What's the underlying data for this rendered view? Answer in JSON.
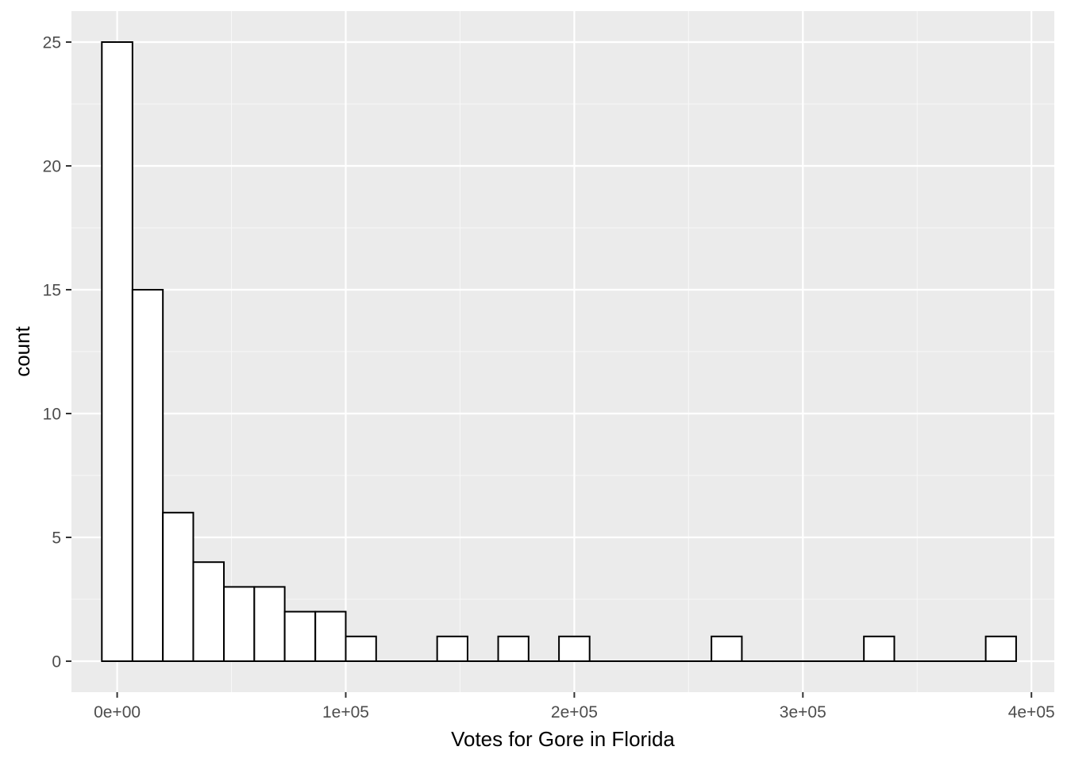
{
  "chart_data": {
    "type": "bar",
    "subtype": "histogram",
    "title": "",
    "xlabel": "Votes for Gore in Florida",
    "ylabel": "count",
    "xlim": [
      -20000,
      410000
    ],
    "ylim": [
      -1.25,
      26.25
    ],
    "x_ticks": [
      {
        "value": 0,
        "label": "0e+00"
      },
      {
        "value": 100000,
        "label": "1e+05"
      },
      {
        "value": 200000,
        "label": "2e+05"
      },
      {
        "value": 300000,
        "label": "3e+05"
      },
      {
        "value": 400000,
        "label": "4e+05"
      }
    ],
    "y_ticks": [
      {
        "value": 0,
        "label": "0"
      },
      {
        "value": 5,
        "label": "5"
      },
      {
        "value": 10,
        "label": "10"
      },
      {
        "value": 15,
        "label": "15"
      },
      {
        "value": 20,
        "label": "20"
      },
      {
        "value": 25,
        "label": "25"
      }
    ],
    "bins": [
      {
        "x0": -6700,
        "x1": 6700,
        "count": 25
      },
      {
        "x0": 6700,
        "x1": 20000,
        "count": 15
      },
      {
        "x0": 20000,
        "x1": 33300,
        "count": 6
      },
      {
        "x0": 33300,
        "x1": 46700,
        "count": 4
      },
      {
        "x0": 46700,
        "x1": 60000,
        "count": 3
      },
      {
        "x0": 60000,
        "x1": 73300,
        "count": 3
      },
      {
        "x0": 73300,
        "x1": 86700,
        "count": 2
      },
      {
        "x0": 86700,
        "x1": 100000,
        "count": 2
      },
      {
        "x0": 100000,
        "x1": 113300,
        "count": 1
      },
      {
        "x0": 113300,
        "x1": 126700,
        "count": 0
      },
      {
        "x0": 126700,
        "x1": 140000,
        "count": 0
      },
      {
        "x0": 140000,
        "x1": 153300,
        "count": 1
      },
      {
        "x0": 153300,
        "x1": 166700,
        "count": 0
      },
      {
        "x0": 166700,
        "x1": 180000,
        "count": 1
      },
      {
        "x0": 180000,
        "x1": 193300,
        "count": 0
      },
      {
        "x0": 193300,
        "x1": 206700,
        "count": 1
      },
      {
        "x0": 206700,
        "x1": 220000,
        "count": 0
      },
      {
        "x0": 220000,
        "x1": 233300,
        "count": 0
      },
      {
        "x0": 233300,
        "x1": 246700,
        "count": 0
      },
      {
        "x0": 246700,
        "x1": 260000,
        "count": 0
      },
      {
        "x0": 260000,
        "x1": 273300,
        "count": 1
      },
      {
        "x0": 273300,
        "x1": 286700,
        "count": 0
      },
      {
        "x0": 286700,
        "x1": 300000,
        "count": 0
      },
      {
        "x0": 300000,
        "x1": 313300,
        "count": 0
      },
      {
        "x0": 313300,
        "x1": 326700,
        "count": 0
      },
      {
        "x0": 326700,
        "x1": 340000,
        "count": 1
      },
      {
        "x0": 340000,
        "x1": 353300,
        "count": 0
      },
      {
        "x0": 353300,
        "x1": 366700,
        "count": 0
      },
      {
        "x0": 366700,
        "x1": 380000,
        "count": 0
      },
      {
        "x0": 380000,
        "x1": 393300,
        "count": 1
      }
    ],
    "grid": true,
    "legend": "none",
    "colors": {
      "panel_background": "#ebebeb",
      "grid_major": "#ffffff",
      "grid_minor": "#f7f7f7",
      "bar_fill": "#ffffff",
      "bar_outline": "#000000",
      "tick_mark": "#333333"
    }
  }
}
